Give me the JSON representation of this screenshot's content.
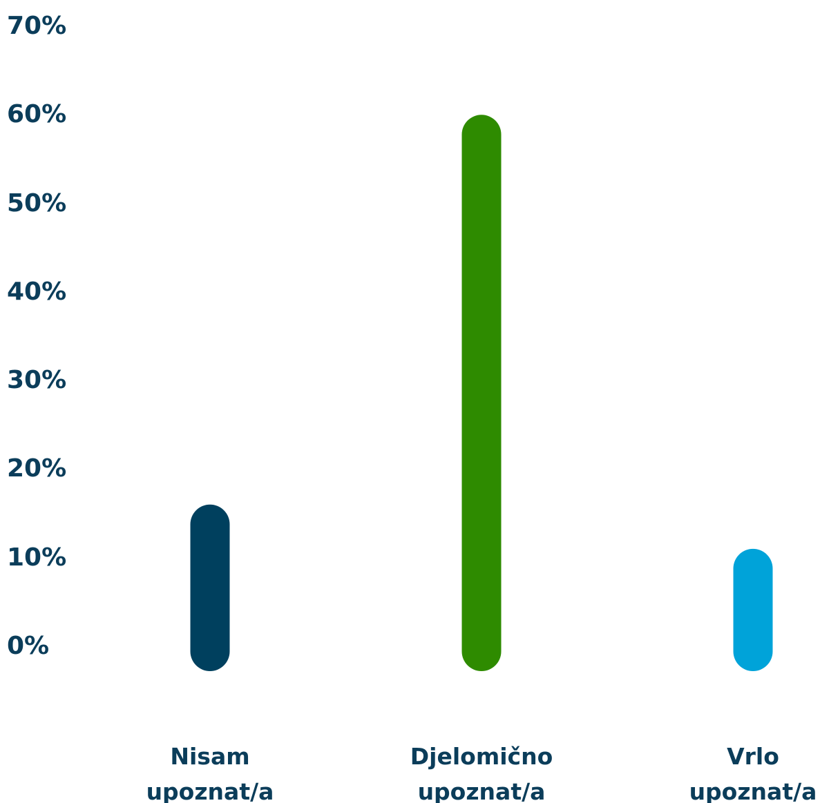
{
  "chart_data": {
    "type": "bar",
    "categories": [
      "Nisam upoznat/a",
      "Djelomično upoznat/a",
      "Vrlo upoznat/a"
    ],
    "series": [
      {
        "values": [
          16,
          60,
          11
        ],
        "colors": [
          "#00405e",
          "#2e8b00",
          "#00a3d9"
        ]
      }
    ],
    "ylim": [
      0,
      70
    ],
    "yticks": [
      {
        "value": 0,
        "label": "0%"
      },
      {
        "value": 10,
        "label": "10%"
      },
      {
        "value": 20,
        "label": "20%"
      },
      {
        "value": 30,
        "label": "30%"
      },
      {
        "value": 40,
        "label": "40%"
      },
      {
        "value": 50,
        "label": "50%"
      },
      {
        "value": 60,
        "label": "60%"
      },
      {
        "value": 70,
        "label": "70%"
      }
    ],
    "grid": false
  }
}
